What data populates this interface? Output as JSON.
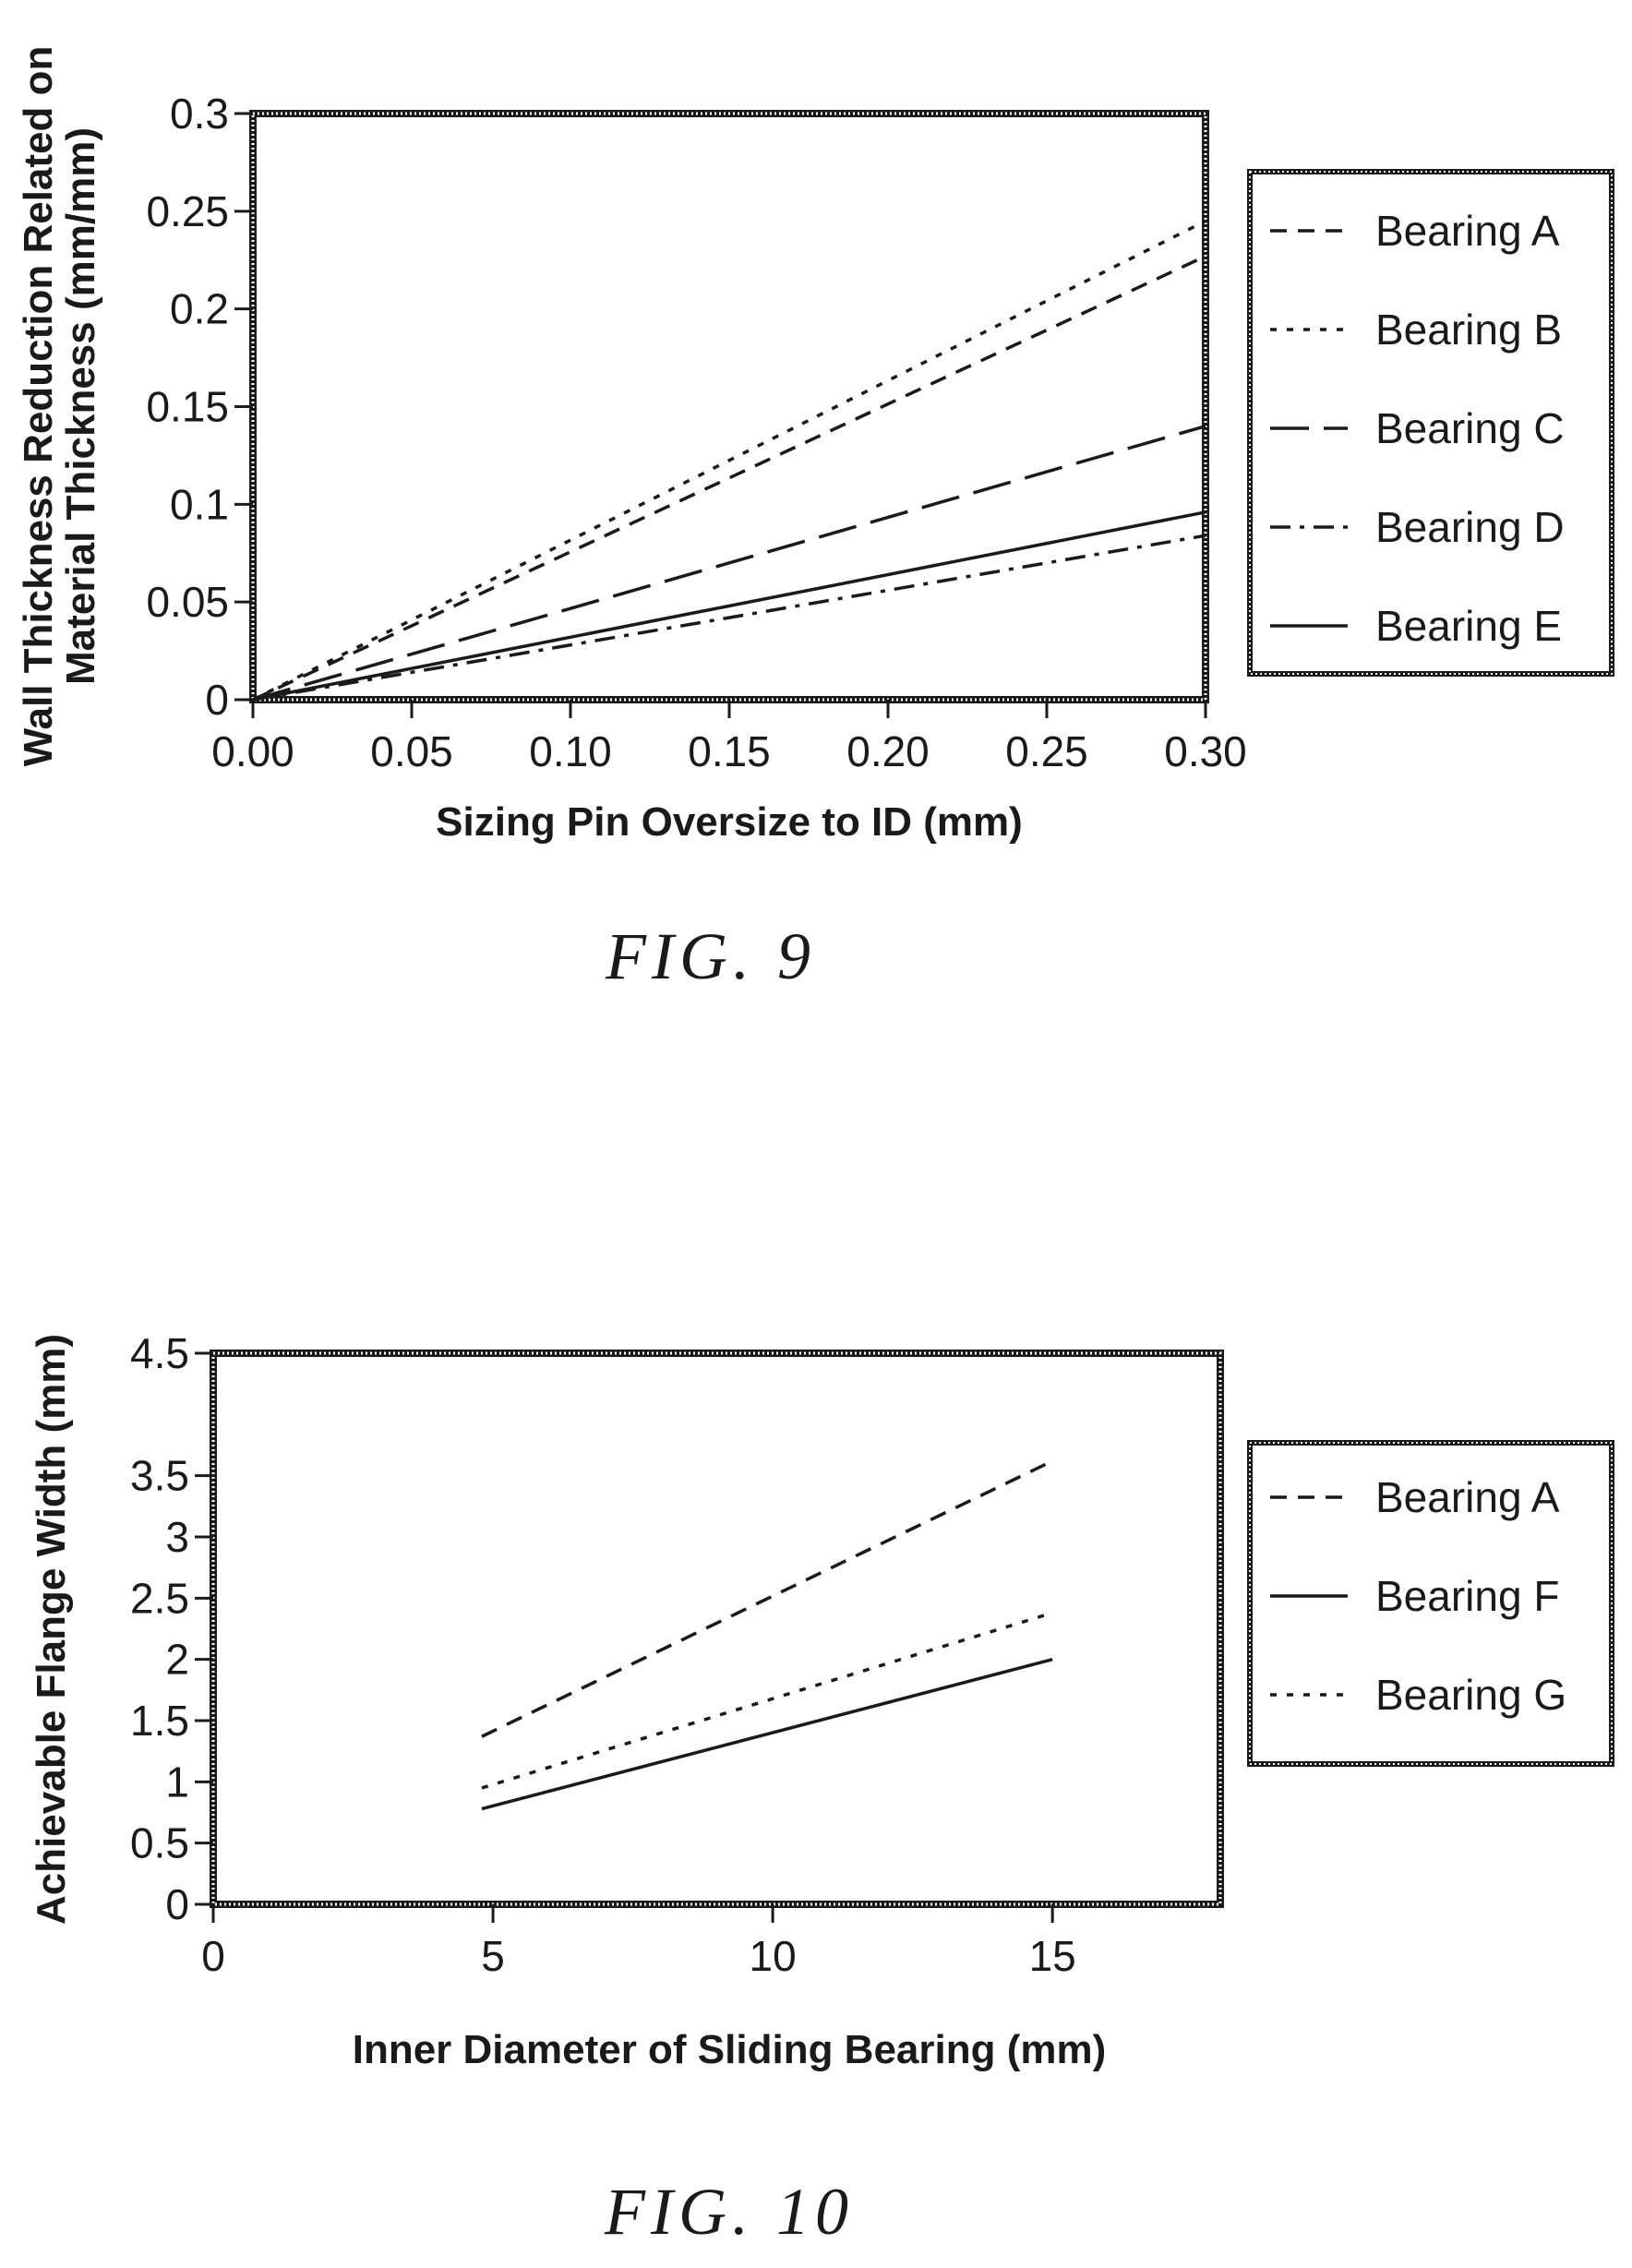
{
  "figures": [
    {
      "caption": "FIG. 9",
      "chart": "fig9"
    },
    {
      "caption": "FIG. 10",
      "chart": "fig10"
    }
  ],
  "colors": {
    "ink": "#1a1a1a",
    "background": "#ffffff"
  },
  "chart_data": [
    {
      "id": "fig9",
      "type": "line",
      "title": "",
      "xlabel": "Sizing Pin Oversize to ID (mm)",
      "ylabel_lines": [
        "Wall Thickness Reduction Related on",
        "Material Thickness (mm/mm)"
      ],
      "xlim": [
        0,
        0.3
      ],
      "ylim": [
        0,
        0.3
      ],
      "x_ticks": [
        "0.00",
        "0.05",
        "0.10",
        "0.15",
        "0.20",
        "0.25",
        "0.30"
      ],
      "y_ticks": [
        "0",
        "0.05",
        "0.1",
        "0.15",
        "0.2",
        "0.25",
        "0.3"
      ],
      "grid": false,
      "legend_position": "right",
      "series": [
        {
          "name": "Bearing A",
          "style": "dash",
          "x": [
            0,
            0.3
          ],
          "y": [
            0,
            0.227
          ]
        },
        {
          "name": "Bearing B",
          "style": "dot",
          "x": [
            0,
            0.3
          ],
          "y": [
            0,
            0.245
          ]
        },
        {
          "name": "Bearing C",
          "style": "longdash",
          "x": [
            0,
            0.3
          ],
          "y": [
            0,
            0.14
          ]
        },
        {
          "name": "Bearing D",
          "style": "dashdot",
          "x": [
            0,
            0.3
          ],
          "y": [
            0,
            0.084
          ]
        },
        {
          "name": "Bearing E",
          "style": "solid",
          "x": [
            0,
            0.3
          ],
          "y": [
            0,
            0.096
          ]
        }
      ]
    },
    {
      "id": "fig10",
      "type": "line",
      "title": "",
      "xlabel": "Inner Diameter of Sliding Bearing (mm)",
      "ylabel_lines": [
        "Achievable Flange Width (mm)"
      ],
      "xlim": [
        0,
        18
      ],
      "ylim": [
        0,
        4.5
      ],
      "x_ticks": [
        "0",
        "5",
        "10",
        "15"
      ],
      "x_tick_values": [
        0,
        5,
        10,
        15
      ],
      "y_ticks": [
        "0",
        "0.5",
        "1",
        "1.5",
        "2",
        "2.5",
        "3",
        "3.5",
        "4.5"
      ],
      "y_tick_values": [
        0,
        0.5,
        1,
        1.5,
        2,
        2.5,
        3,
        3.5,
        4.5
      ],
      "grid": false,
      "legend_position": "right",
      "series": [
        {
          "name": "Bearing A",
          "style": "dash",
          "x": [
            4.8,
            15
          ],
          "y": [
            1.37,
            3.62
          ]
        },
        {
          "name": "Bearing F",
          "style": "solid",
          "x": [
            4.8,
            15
          ],
          "y": [
            0.78,
            2.0
          ]
        },
        {
          "name": "Bearing G",
          "style": "dot",
          "x": [
            4.8,
            15
          ],
          "y": [
            0.95,
            2.38
          ]
        }
      ]
    }
  ]
}
